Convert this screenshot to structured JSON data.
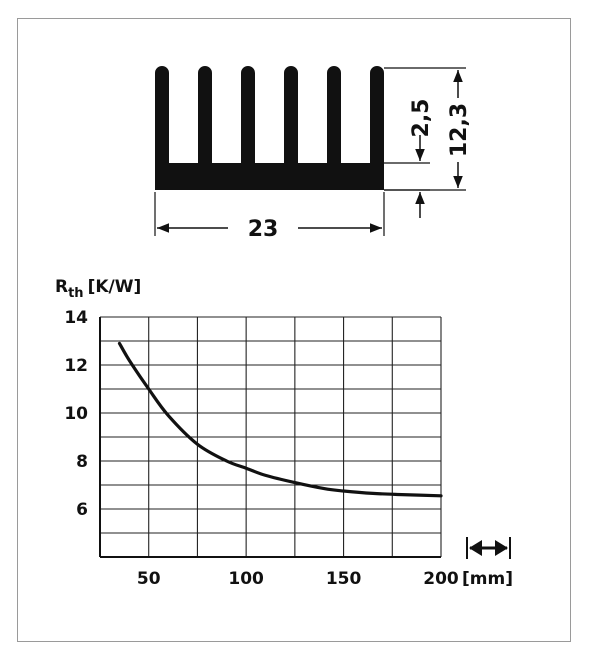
{
  "heatsink": {
    "width_label": "23",
    "base_label": "2,5",
    "height_label": "12,3"
  },
  "chart_data": {
    "type": "line",
    "ylabel_main": "R",
    "ylabel_sub": "th",
    "ylabel_unit": "[K/W]",
    "xlim": [
      25,
      200
    ],
    "ylim": [
      4,
      14
    ],
    "x_ticks": [
      50,
      100,
      150,
      200
    ],
    "x_tick_labels": [
      "50",
      "100",
      "150",
      "200"
    ],
    "y_ticks": [
      6,
      8,
      10,
      12,
      14
    ],
    "y_tick_labels": [
      "6",
      "8",
      "10",
      "12",
      "14"
    ],
    "x_unit": "[mm]",
    "grid": true,
    "series": [
      {
        "x": [
          35,
          40,
          50,
          60,
          75,
          90,
          100,
          110,
          125,
          140,
          150,
          165,
          180,
          200
        ],
        "y": [
          12.9,
          12.2,
          11.0,
          9.9,
          8.7,
          8.0,
          7.7,
          7.4,
          7.1,
          6.85,
          6.75,
          6.65,
          6.6,
          6.55
        ]
      }
    ]
  }
}
